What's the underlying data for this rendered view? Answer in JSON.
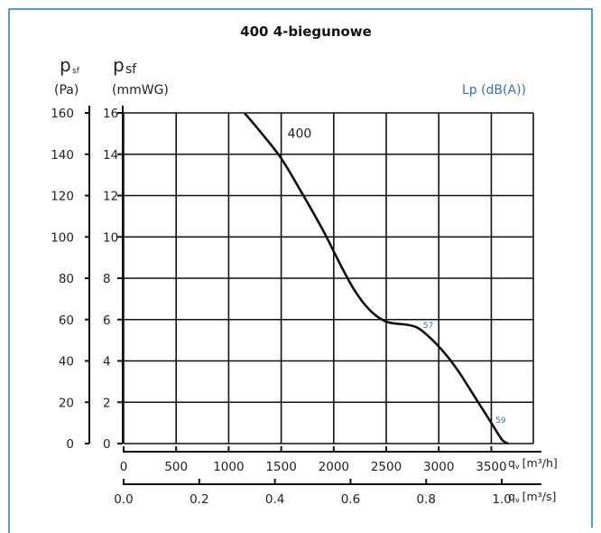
{
  "colors": {
    "frame": "#1f78c8",
    "curve": "#111111",
    "grid": "#111111",
    "sound": "#3a6fb5"
  },
  "chart_data": {
    "type": "line",
    "title": "400 4-biegunowe",
    "y_axes": [
      {
        "symbol": "p",
        "subscript": "sf",
        "unit": "(Pa)",
        "range": [
          0,
          160
        ],
        "ticks": [
          "0",
          "20",
          "40",
          "60",
          "80",
          "100",
          "120",
          "140",
          "160"
        ]
      },
      {
        "symbol": "p",
        "subscript": "sf",
        "unit": "(mmWG)",
        "range": [
          0,
          16
        ],
        "ticks": [
          "0",
          "2",
          "4",
          "6",
          "8",
          "10",
          "12",
          "14",
          "16"
        ]
      }
    ],
    "x_axes": [
      {
        "label": "q",
        "subscript": "v",
        "unit": "[m³/h]",
        "range": [
          0,
          3900
        ],
        "ticks": [
          0,
          500,
          1000,
          1500,
          2000,
          2500,
          3000,
          3500
        ],
        "tick_labels": [
          "0",
          "500",
          "1000",
          "1500",
          "2000",
          "2500",
          "3000",
          "3500"
        ]
      },
      {
        "label": "q",
        "subscript": "v",
        "unit": "[m³/s]",
        "range": [
          0,
          1.0833
        ],
        "ticks": [
          0,
          0.2,
          0.4,
          0.6,
          0.8,
          1.0
        ],
        "tick_labels": [
          "0.0",
          "0.2",
          "0.4",
          "0.6",
          "0.8",
          "1.0"
        ]
      }
    ],
    "right_label": "Lp (dB(A))",
    "grid": true,
    "series": [
      {
        "name": "400",
        "x": [
          1150,
          1300,
          1500,
          1700,
          1900,
          2000,
          2100,
          2200,
          2300,
          2400,
          2500,
          2600,
          2700,
          2800,
          2900,
          3000,
          3100,
          3200,
          3300,
          3400,
          3500,
          3600,
          3660
        ],
        "y": [
          160,
          151,
          138,
          121,
          103,
          93,
          83,
          74,
          67,
          62,
          59,
          58,
          57.5,
          56,
          52,
          47,
          41,
          34,
          26,
          18,
          10,
          2,
          0
        ]
      }
    ],
    "annotations": [
      {
        "text": "400",
        "x": 1560,
        "y": 148
      },
      {
        "text": "57",
        "x": 2850,
        "y": 56
      },
      {
        "text": "59",
        "x": 3540,
        "y": 10
      }
    ]
  }
}
